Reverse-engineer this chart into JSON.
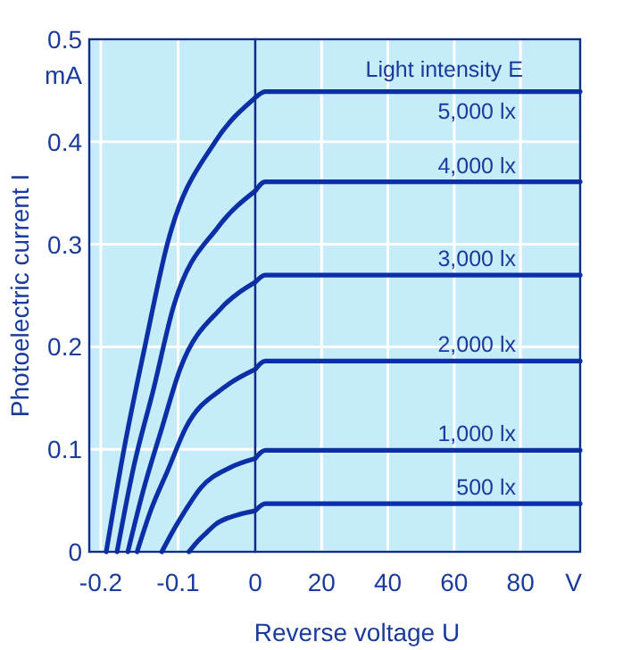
{
  "chart_data": [
    {
      "type": "line",
      "ylabel": "Photoelectric current I",
      "xlim": [
        -0.215,
        0
      ],
      "xticks": [
        -0.2,
        -0.1,
        0
      ],
      "ylim": [
        0,
        0.5
      ],
      "yticks": [
        0,
        0.1,
        0.2,
        0.3,
        0.4,
        0.5,
        {
          "value": 0.465,
          "label": "mA"
        }
      ],
      "grid": true,
      "color": "#0b2fa6",
      "series": [
        {
          "x": [
            -0.193,
            -0.17,
            -0.143,
            -0.114,
            -0.052,
            0
          ],
          "values": [
            0,
            0.1,
            0.2,
            0.3,
            0.4,
            0.443
          ]
        },
        {
          "x": [
            -0.179,
            -0.158,
            -0.132,
            -0.106,
            -0.048,
            0
          ],
          "values": [
            0,
            0.081,
            0.158,
            0.239,
            0.317,
            0.352
          ]
        },
        {
          "x": [
            -0.165,
            -0.145,
            -0.122,
            -0.097,
            -0.045,
            0
          ],
          "values": [
            0,
            0.06,
            0.118,
            0.179,
            0.237,
            0.263
          ]
        },
        {
          "x": [
            -0.153,
            -0.135,
            -0.113,
            -0.09,
            -0.041,
            0
          ],
          "values": [
            0,
            0.041,
            0.08,
            0.121,
            0.16,
            0.178
          ]
        },
        {
          "x": [
            -0.121,
            -0.106,
            -0.09,
            -0.071,
            -0.033,
            0
          ],
          "values": [
            0,
            0.021,
            0.041,
            0.062,
            0.082,
            0.091
          ]
        },
        {
          "x": [
            -0.086,
            -0.076,
            -0.064,
            -0.051,
            -0.023,
            0
          ],
          "values": [
            0,
            0.009,
            0.018,
            0.027,
            0.036,
            0.04
          ]
        }
      ]
    },
    {
      "type": "line",
      "xlabel": "Reverse voltage U",
      "legend_title": "Light intensity E",
      "xlim": [
        0,
        98
      ],
      "xticks": [
        20,
        40,
        60,
        80,
        {
          "value": 96,
          "label": "V"
        }
      ],
      "ylim": [
        0,
        0.5
      ],
      "yticks": [
        0,
        0.1,
        0.2,
        0.3,
        0.4,
        0.5
      ],
      "tick_labels": "x",
      "grid": true,
      "color": "#0b2fa6",
      "series": [
        {
          "name": "5,000 lx",
          "x": [
            0,
            3,
            98
          ],
          "values": [
            0.443,
            0.449,
            0.449
          ]
        },
        {
          "name": "4,000 lx",
          "x": [
            0,
            3,
            98
          ],
          "values": [
            0.352,
            0.361,
            0.361
          ]
        },
        {
          "name": "3,000 lx",
          "x": [
            0,
            3,
            98
          ],
          "values": [
            0.263,
            0.27,
            0.27
          ]
        },
        {
          "name": "2,000 lx",
          "x": [
            0,
            3,
            98
          ],
          "values": [
            0.178,
            0.186,
            0.186
          ]
        },
        {
          "name": "1,000 lx",
          "x": [
            0,
            3,
            98
          ],
          "values": [
            0.091,
            0.099,
            0.099
          ]
        },
        {
          "name": "500 lx",
          "x": [
            0,
            3,
            98
          ],
          "values": [
            0.04,
            0.047,
            0.047
          ]
        }
      ]
    }
  ]
}
